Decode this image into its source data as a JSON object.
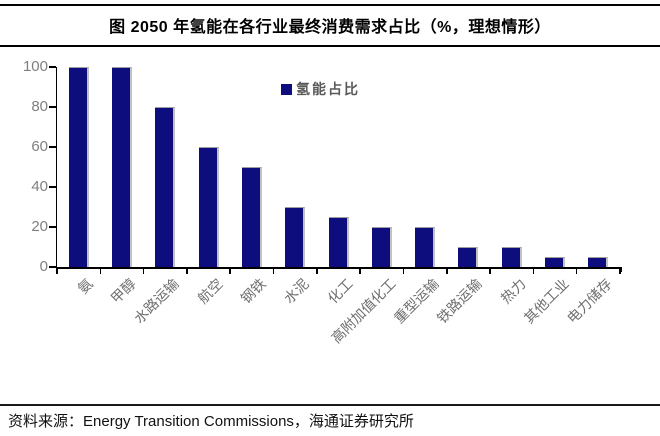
{
  "title": "图 2050 年氢能在各行业最终消费需求占比（%，理想情形）",
  "legend": {
    "label": "氢能占比",
    "marker_color": "#0d0d7e"
  },
  "footer": {
    "source_label": "资料来源：",
    "source_text": "Energy Transition Commissions，海通证券研究所"
  },
  "chart_data": {
    "type": "bar",
    "title": "图 2050 年氢能在各行业最终消费需求占比（%，理想情形）",
    "categories": [
      "氨",
      "甲醇",
      "水路运输",
      "航空",
      "钢铁",
      "水泥",
      "化工",
      "高附加值化工",
      "重型运输",
      "铁路运输",
      "热力",
      "其他工业",
      "电力储存"
    ],
    "values": [
      100,
      100,
      80,
      60,
      50,
      30,
      25,
      20,
      20,
      10,
      10,
      5,
      5
    ],
    "series_name": "氢能占比",
    "xlabel": "",
    "ylabel": "",
    "ylim": [
      0,
      100
    ],
    "yticks": [
      0,
      20,
      40,
      60,
      80,
      100
    ],
    "bar_color": "#0d0d7e",
    "axis_color": "#000000",
    "tick_label_color": "#7f7f7f",
    "grid": false,
    "legend_position": "top-center"
  }
}
